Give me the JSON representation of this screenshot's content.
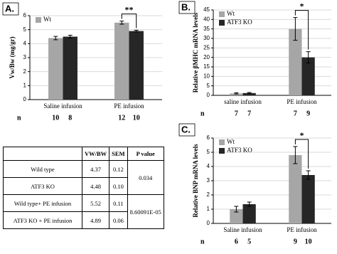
{
  "chart_data": [
    {
      "type": "bar",
      "panel": "A.",
      "ylabel": "Vw/Bw (mg/gr)",
      "categories": [
        "Saline infusion",
        "PE infusion"
      ],
      "series": [
        {
          "name": "Wt",
          "color": "#a6a6a6",
          "values": [
            4.4,
            5.5
          ],
          "errors": [
            0.12,
            0.11
          ],
          "n": [
            10,
            12
          ]
        },
        {
          "name": null,
          "color": "#262626",
          "values": [
            4.5,
            4.9
          ],
          "errors": [
            0.1,
            0.06
          ],
          "n": [
            8,
            10
          ]
        }
      ],
      "n_label": "n",
      "significance": {
        "label": "**",
        "category": "PE infusion"
      },
      "ylim": [
        0,
        6
      ],
      "yticks": [
        0,
        1,
        2,
        3,
        4,
        5,
        6
      ],
      "grid": true
    },
    {
      "type": "bar",
      "panel": "B.",
      "ylabel": "Relative βMHC mRNA levels",
      "categories": [
        "saline infusion",
        "PE infusion"
      ],
      "series": [
        {
          "name": "Wt",
          "color": "#a6a6a6",
          "values": [
            1,
            35
          ],
          "errors": [
            0.3,
            6
          ],
          "n": [
            7,
            7
          ]
        },
        {
          "name": "ATF3 KO",
          "color": "#262626",
          "values": [
            1.2,
            20
          ],
          "errors": [
            0.3,
            3
          ],
          "n": [
            7,
            9
          ]
        }
      ],
      "n_label": "n",
      "significance": {
        "label": "*",
        "category": "PE infusion"
      },
      "ylim": [
        0,
        45
      ],
      "yticks": [
        0,
        5,
        10,
        15,
        20,
        25,
        30,
        35,
        40,
        45
      ],
      "grid": true
    },
    {
      "type": "bar",
      "panel": "C.",
      "ylabel": "Relative BNP mRNA levels",
      "categories": [
        "Saline infusion",
        "PE infusion"
      ],
      "series": [
        {
          "name": "Wt",
          "color": "#a6a6a6",
          "values": [
            1.0,
            4.8
          ],
          "errors": [
            0.2,
            0.6
          ],
          "n": [
            6,
            9
          ]
        },
        {
          "name": "ATF3 KO",
          "color": "#262626",
          "values": [
            1.35,
            3.4
          ],
          "errors": [
            0.15,
            0.3
          ],
          "n": [
            5,
            10
          ]
        }
      ],
      "n_label": "n",
      "significance": {
        "label": "*",
        "category": "PE infusion"
      },
      "ylim": [
        0,
        6
      ],
      "yticks": [
        0,
        1,
        2,
        3,
        4,
        5,
        6
      ],
      "grid": true
    }
  ],
  "table": {
    "header": [
      "VW/BW",
      "SEM",
      "P value"
    ],
    "groups": [
      {
        "p_value": "0.034",
        "rows": [
          [
            "Wild type",
            "4.37",
            "0.12"
          ],
          [
            "ATF3 KO",
            "4.48",
            "0.10"
          ]
        ]
      },
      {
        "p_value": "8.60091E-05",
        "rows": [
          [
            "Wild type+ PE infusion",
            "5.52",
            "0.11"
          ],
          [
            "ATF3 KO + PE infusion",
            "4.89",
            "0.06"
          ]
        ]
      }
    ]
  }
}
